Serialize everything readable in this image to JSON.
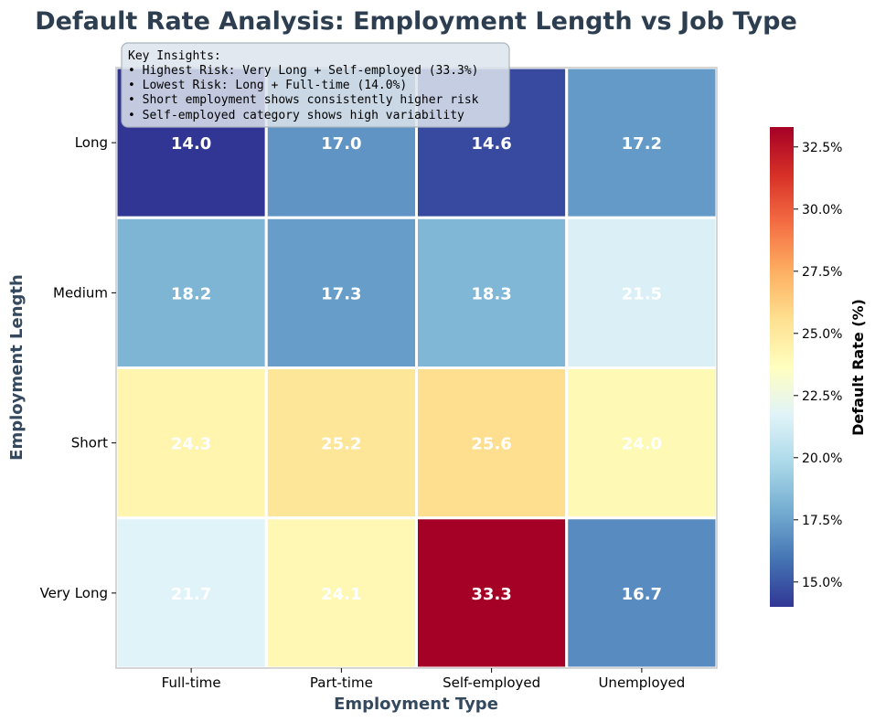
{
  "chart_data": {
    "type": "heatmap",
    "title": "Default Rate Analysis: Employment Length vs Job Type",
    "xlabel": "Employment Type",
    "ylabel": "Employment Length",
    "x_categories": [
      "Full-time",
      "Part-time",
      "Self-employed",
      "Unemployed"
    ],
    "y_categories": [
      "Long",
      "Medium",
      "Short",
      "Very Long"
    ],
    "values": [
      [
        14.0,
        17.0,
        14.6,
        17.2
      ],
      [
        18.2,
        17.3,
        18.3,
        21.5
      ],
      [
        24.3,
        25.2,
        25.6,
        24.0
      ],
      [
        21.7,
        24.1,
        33.3,
        16.7
      ]
    ],
    "value_format": "0.1",
    "colormap": "RdYlBu_r",
    "vmin": 14.0,
    "vmax": 33.3,
    "colorbar": {
      "label": "Default Rate (%)",
      "ticks": [
        15.0,
        17.5,
        20.0,
        22.5,
        25.0,
        27.5,
        30.0,
        32.5
      ],
      "tick_labels": [
        "15.0%",
        "17.5%",
        "20.0%",
        "22.5%",
        "25.0%",
        "27.5%",
        "30.0%",
        "32.5%"
      ]
    },
    "annotation": {
      "lines": [
        "Key Insights:",
        "• Highest Risk: Very Long + Self-employed (33.3%)",
        "• Lowest Risk: Long + Full-time (14.0%)",
        "• Short employment shows consistently higher risk",
        "• Self-employed category shows high variability"
      ]
    }
  },
  "colors": {
    "title": "#2c3e50",
    "axis_title": "#34495e",
    "cell_border": "#ffffff",
    "frame": "#c8c8c8",
    "annotation_bg": "#dde4ec",
    "annotation_border": "#aab4bf"
  }
}
